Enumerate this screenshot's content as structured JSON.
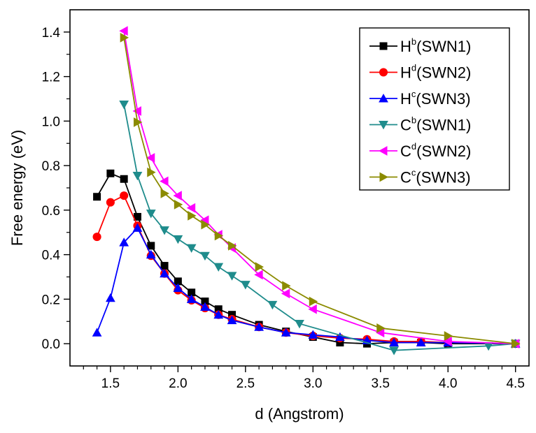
{
  "chart_data": {
    "type": "line",
    "title": "",
    "xlabel": "d (Angstrom)",
    "ylabel": "Free energy (eV)",
    "xlim": [
      1.2,
      4.6
    ],
    "ylim": [
      -0.1,
      1.5
    ],
    "xticks": [
      "1.5",
      "2.0",
      "2.5",
      "3.0",
      "3.5",
      "4.0",
      "4.5"
    ],
    "yticks": [
      "0.0",
      "0.2",
      "0.4",
      "0.6",
      "0.8",
      "1.0",
      "1.2",
      "1.4"
    ],
    "grid": false,
    "legend_position": "top-right",
    "series": [
      {
        "legend": {
          "base": "H",
          "sup": "b",
          "rest": "(SWN1)"
        },
        "color": "#000000",
        "marker": "square",
        "x": [
          1.4,
          1.5,
          1.6,
          1.7,
          1.8,
          1.9,
          2.0,
          2.1,
          2.2,
          2.3,
          2.4,
          2.6,
          2.8,
          3.0,
          3.2,
          3.4,
          3.6,
          3.8,
          4.0,
          4.5
        ],
        "y": [
          0.66,
          0.765,
          0.74,
          0.57,
          0.44,
          0.35,
          0.28,
          0.23,
          0.19,
          0.155,
          0.13,
          0.085,
          0.055,
          0.03,
          0.005,
          0.0,
          0.005,
          0.005,
          0.0,
          0.0
        ]
      },
      {
        "legend": {
          "base": "H",
          "sup": "d",
          "rest": "(SWN2)"
        },
        "color": "#ff0000",
        "marker": "circle",
        "x": [
          1.4,
          1.5,
          1.6,
          1.7,
          1.8,
          1.9,
          2.0,
          2.1,
          2.2,
          2.3,
          2.4,
          2.6,
          2.8,
          3.0,
          3.2,
          3.4,
          3.6,
          3.8,
          4.0,
          4.5
        ],
        "y": [
          0.48,
          0.635,
          0.665,
          0.53,
          0.395,
          0.315,
          0.24,
          0.195,
          0.16,
          0.13,
          0.11,
          0.075,
          0.05,
          0.035,
          0.025,
          0.02,
          0.01,
          0.01,
          0.005,
          0.0
        ]
      },
      {
        "legend": {
          "base": "H",
          "sup": "c",
          "rest": "(SWN3)"
        },
        "color": "#0000ff",
        "marker": "triangle-up",
        "x": [
          1.4,
          1.5,
          1.6,
          1.7,
          1.8,
          1.9,
          2.0,
          2.1,
          2.2,
          2.3,
          2.4,
          2.6,
          2.8,
          3.0,
          3.2,
          3.4,
          3.6,
          3.8,
          4.0,
          4.5
        ],
        "y": [
          0.05,
          0.205,
          0.455,
          0.52,
          0.4,
          0.315,
          0.25,
          0.2,
          0.165,
          0.13,
          0.105,
          0.075,
          0.05,
          0.04,
          0.03,
          0.015,
          0.005,
          0.005,
          0.005,
          0.0
        ]
      },
      {
        "legend": {
          "base": "C",
          "sup": "b",
          "rest": "(SWN1)"
        },
        "color": "#1f8c8c",
        "marker": "triangle-down",
        "x": [
          1.6,
          1.7,
          1.8,
          1.9,
          2.0,
          2.1,
          2.2,
          2.3,
          2.4,
          2.5,
          2.7,
          2.9,
          3.6,
          4.3,
          4.5
        ],
        "y": [
          1.075,
          0.755,
          0.585,
          0.51,
          0.47,
          0.43,
          0.395,
          0.345,
          0.305,
          0.265,
          0.175,
          0.09,
          -0.03,
          -0.01,
          0.0
        ]
      },
      {
        "legend": {
          "base": "C",
          "sup": "d",
          "rest": "(SWN2)"
        },
        "color": "#ff00ff",
        "marker": "triangle-left",
        "x": [
          1.6,
          1.7,
          1.8,
          1.9,
          2.0,
          2.1,
          2.2,
          2.3,
          2.4,
          2.6,
          2.8,
          3.0,
          3.5,
          4.0,
          4.5
        ],
        "y": [
          1.405,
          1.045,
          0.835,
          0.73,
          0.665,
          0.61,
          0.555,
          0.49,
          0.43,
          0.31,
          0.225,
          0.155,
          0.05,
          0.01,
          0.0
        ]
      },
      {
        "legend": {
          "base": "C",
          "sup": "c",
          "rest": "(SWN3)"
        },
        "color": "#8b8b00",
        "marker": "triangle-right",
        "x": [
          1.6,
          1.7,
          1.8,
          1.9,
          2.0,
          2.1,
          2.2,
          2.3,
          2.4,
          2.6,
          2.8,
          3.0,
          3.5,
          4.0,
          4.5
        ],
        "y": [
          1.375,
          0.995,
          0.77,
          0.675,
          0.625,
          0.575,
          0.535,
          0.485,
          0.44,
          0.345,
          0.26,
          0.19,
          0.07,
          0.035,
          0.0
        ]
      }
    ]
  }
}
